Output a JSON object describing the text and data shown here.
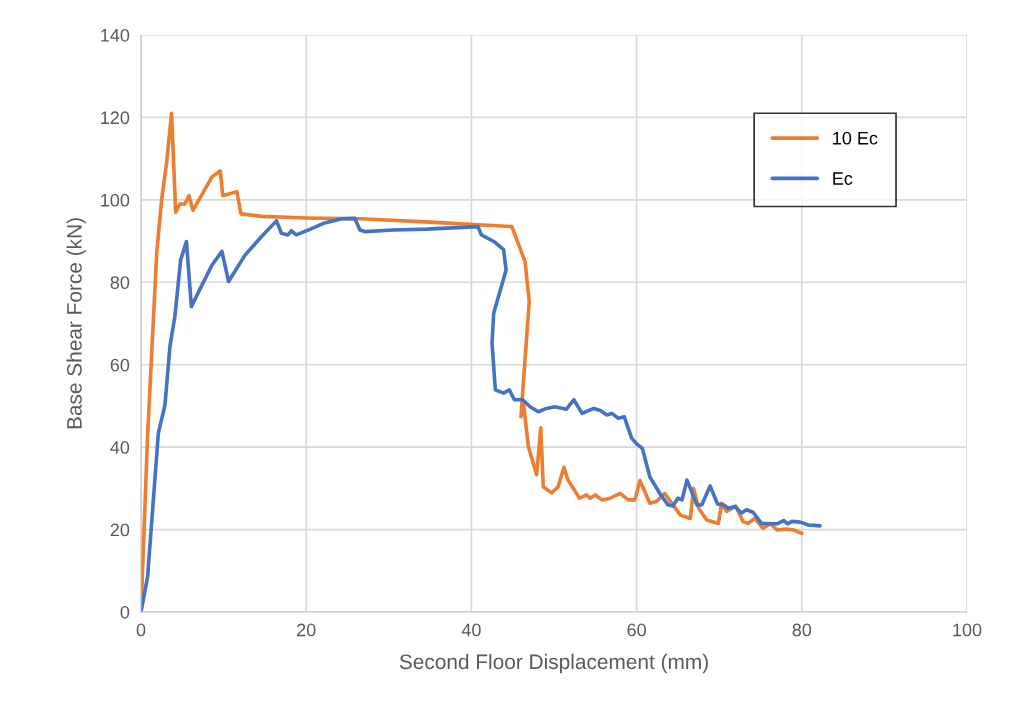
{
  "chart_data": {
    "type": "line",
    "xlabel": "Second Floor Displacement (mm)",
    "ylabel": "Base Shear Force (kN)",
    "xlim": [
      0,
      100
    ],
    "xticks": [
      0,
      20,
      40,
      60,
      80,
      100
    ],
    "ylim": [
      0,
      140
    ],
    "yticks": [
      0,
      20,
      40,
      60,
      80,
      100,
      120,
      140
    ],
    "grid": true,
    "legend": "top right",
    "marker": "none",
    "line_style": "solid",
    "series": [
      {
        "name": "10 Ec",
        "color": "#ed7d31",
        "x": [
          0,
          0.8,
          1.9,
          2.5,
          3.1,
          3.7,
          4.2,
          4.7,
          5.3,
          5.8,
          6.3,
          8.6,
          9.6,
          9.9,
          11.6,
          12.1,
          14.6,
          20,
          26.5,
          35,
          44.9,
          46.5,
          47.0,
          46.0,
          46.3,
          46.9,
          47.9,
          48.4,
          48.7,
          49.7,
          50.5,
          51.2,
          51.7,
          53.1,
          53.9,
          54.4,
          55,
          55.8,
          56.8,
          58,
          59,
          59.8,
          60.4,
          61.6,
          62.4,
          63.4,
          65.3,
          66.5,
          66.9,
          67.5,
          68.5,
          69.9,
          70.3,
          70.9,
          72,
          72.9,
          73.5,
          74.3,
          75.3,
          76.2,
          77,
          78.2,
          79,
          80
        ],
        "values": [
          0,
          43,
          87,
          100,
          109,
          121,
          97,
          99,
          99,
          101,
          97.5,
          105.6,
          107,
          101,
          102,
          96.6,
          96,
          95.6,
          95.4,
          94.6,
          93.5,
          85,
          75.3,
          47.4,
          50.7,
          40.1,
          33.3,
          44.7,
          30.4,
          28.9,
          30.4,
          35.1,
          32,
          27.6,
          28.4,
          27.6,
          28.4,
          27.2,
          27.6,
          28.8,
          27.2,
          27.2,
          31.9,
          26.4,
          26.8,
          28.8,
          23.5,
          22.7,
          30,
          25.2,
          22.3,
          21.5,
          26.4,
          24.4,
          25.7,
          21.9,
          21.5,
          22.7,
          20.3,
          21.5,
          19.9,
          20.1,
          19.9,
          19.1
        ]
      },
      {
        "name": "Ec",
        "color": "#4472c4",
        "x": [
          0,
          0.8,
          2.1,
          2.9,
          3.5,
          4.1,
          4.8,
          5.5,
          6.1,
          7.3,
          8.6,
          9.8,
          10.6,
          12.6,
          14.6,
          16.4,
          17,
          17.8,
          18.2,
          18.8,
          20.3,
          22.1,
          24.3,
          25.9,
          26.5,
          27.1,
          30.5,
          34.6,
          40.8,
          41.2,
          42.7,
          43.9,
          44.2,
          42.7,
          42.5,
          42.7,
          42.9,
          43.9,
          44.6,
          45.2,
          46.2,
          47.1,
          48.1,
          49.1,
          50.1,
          51.5,
          52.4,
          53.4,
          54.8,
          55.6,
          56.4,
          57,
          57.8,
          58.5,
          59.4,
          60,
          60.7,
          61.6,
          62.8,
          63.8,
          64.4,
          65,
          65.5,
          66.1,
          67.3,
          67.9,
          68.9,
          69.8,
          70.5,
          71.1,
          71.9,
          72.7,
          73.3,
          74.1,
          75.1,
          76.2,
          77,
          77.8,
          78.3,
          78.8,
          79.8,
          80.8,
          82.2
        ],
        "values": [
          0,
          8.6,
          43.4,
          50.2,
          64.4,
          71.7,
          85.4,
          89.9,
          74.1,
          79,
          84.2,
          87.5,
          80.2,
          86.6,
          91.1,
          94.9,
          91.9,
          91.5,
          92.5,
          91.5,
          92.7,
          94.3,
          95.4,
          95.5,
          92.7,
          92.3,
          92.7,
          92.9,
          93.5,
          91.5,
          89.9,
          87.9,
          83,
          72.5,
          65.2,
          59.5,
          53.9,
          53.1,
          53.9,
          51.5,
          51.5,
          49.8,
          48.6,
          49.4,
          49.8,
          49.2,
          51.5,
          48.2,
          49.4,
          48.9,
          47.8,
          48.2,
          47,
          47.4,
          42.2,
          40.8,
          39.7,
          32.8,
          28.8,
          26,
          25.7,
          27.6,
          27.2,
          32,
          26,
          26,
          30.6,
          26.2,
          26,
          25.2,
          25.6,
          24,
          24.8,
          24.2,
          21.5,
          21.4,
          21.4,
          22.2,
          21.4,
          22,
          21.8,
          21.1,
          20.9
        ]
      }
    ]
  }
}
